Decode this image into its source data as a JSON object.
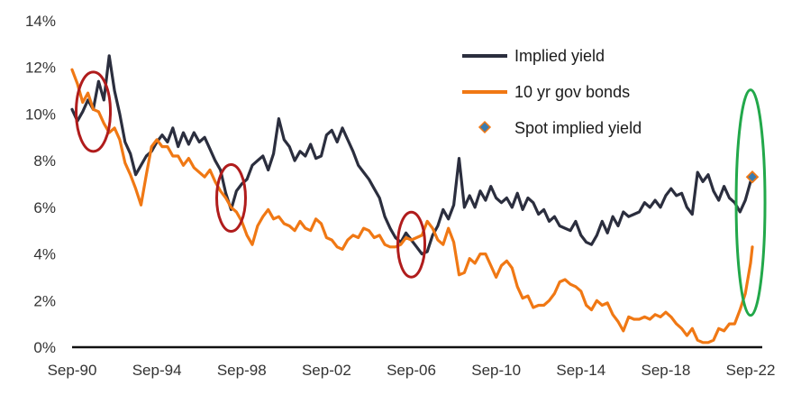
{
  "chart_data": {
    "type": "line",
    "ylim": [
      0,
      14
    ],
    "y_ticks": [
      "0%",
      "2%",
      "4%",
      "6%",
      "8%",
      "10%",
      "12%",
      "14%"
    ],
    "x_ticks": [
      "Sep-90",
      "Sep-94",
      "Sep-98",
      "Sep-02",
      "Sep-06",
      "Sep-10",
      "Sep-14",
      "Sep-18",
      "Sep-22"
    ],
    "xlim": [
      "1990-09",
      "2022-10"
    ],
    "grid": false,
    "legend_position": "top-right",
    "series": [
      {
        "name": "Implied yield",
        "color": "#2b2e3e",
        "points": [
          [
            "1990-09",
            10.2
          ],
          [
            "1990-12",
            9.7
          ],
          [
            "1991-03",
            10.1
          ],
          [
            "1991-06",
            10.6
          ],
          [
            "1991-09",
            10.2
          ],
          [
            "1991-12",
            11.4
          ],
          [
            "1992-03",
            10.6
          ],
          [
            "1992-06",
            12.5
          ],
          [
            "1992-09",
            11.0
          ],
          [
            "1992-12",
            10.0
          ],
          [
            "1993-03",
            8.8
          ],
          [
            "1993-06",
            8.3
          ],
          [
            "1993-09",
            7.4
          ],
          [
            "1993-12",
            7.8
          ],
          [
            "1994-03",
            8.2
          ],
          [
            "1994-06",
            8.4
          ],
          [
            "1994-09",
            8.8
          ],
          [
            "1994-12",
            9.1
          ],
          [
            "1995-03",
            8.8
          ],
          [
            "1995-06",
            9.4
          ],
          [
            "1995-09",
            8.6
          ],
          [
            "1995-12",
            9.2
          ],
          [
            "1996-03",
            8.7
          ],
          [
            "1996-06",
            9.2
          ],
          [
            "1996-09",
            8.8
          ],
          [
            "1996-12",
            9.0
          ],
          [
            "1997-03",
            8.5
          ],
          [
            "1997-06",
            8.0
          ],
          [
            "1997-09",
            7.6
          ],
          [
            "1997-12",
            6.6
          ],
          [
            "1998-03",
            5.9
          ],
          [
            "1998-06",
            6.7
          ],
          [
            "1998-09",
            7.0
          ],
          [
            "1998-12",
            7.2
          ],
          [
            "1999-03",
            7.8
          ],
          [
            "1999-06",
            8.0
          ],
          [
            "1999-09",
            8.2
          ],
          [
            "1999-12",
            7.6
          ],
          [
            "2000-03",
            8.3
          ],
          [
            "2000-06",
            9.8
          ],
          [
            "2000-09",
            8.9
          ],
          [
            "2000-12",
            8.6
          ],
          [
            "2001-03",
            8.0
          ],
          [
            "2001-06",
            8.4
          ],
          [
            "2001-09",
            8.2
          ],
          [
            "2001-12",
            8.7
          ],
          [
            "2002-03",
            8.1
          ],
          [
            "2002-06",
            8.2
          ],
          [
            "2002-09",
            9.1
          ],
          [
            "2002-12",
            9.3
          ],
          [
            "2003-03",
            8.8
          ],
          [
            "2003-06",
            9.4
          ],
          [
            "2003-09",
            8.9
          ],
          [
            "2003-12",
            8.4
          ],
          [
            "2004-03",
            7.8
          ],
          [
            "2004-06",
            7.5
          ],
          [
            "2004-09",
            7.2
          ],
          [
            "2004-12",
            6.8
          ],
          [
            "2005-03",
            6.4
          ],
          [
            "2005-06",
            5.6
          ],
          [
            "2005-09",
            5.1
          ],
          [
            "2005-12",
            4.7
          ],
          [
            "2006-03",
            4.5
          ],
          [
            "2006-06",
            4.9
          ],
          [
            "2006-09",
            4.6
          ],
          [
            "2006-12",
            4.3
          ],
          [
            "2007-03",
            4.0
          ],
          [
            "2007-06",
            4.1
          ],
          [
            "2007-09",
            4.8
          ],
          [
            "2007-12",
            5.2
          ],
          [
            "2008-03",
            5.9
          ],
          [
            "2008-06",
            5.5
          ],
          [
            "2008-09",
            6.1
          ],
          [
            "2008-12",
            8.1
          ],
          [
            "2009-03",
            6.0
          ],
          [
            "2009-06",
            6.5
          ],
          [
            "2009-09",
            6.0
          ],
          [
            "2009-12",
            6.7
          ],
          [
            "2010-03",
            6.3
          ],
          [
            "2010-06",
            6.9
          ],
          [
            "2010-09",
            6.4
          ],
          [
            "2010-12",
            6.2
          ],
          [
            "2011-03",
            6.4
          ],
          [
            "2011-06",
            6.0
          ],
          [
            "2011-09",
            6.6
          ],
          [
            "2011-12",
            5.9
          ],
          [
            "2012-03",
            6.4
          ],
          [
            "2012-06",
            6.2
          ],
          [
            "2012-09",
            5.7
          ],
          [
            "2012-12",
            5.9
          ],
          [
            "2013-03",
            5.4
          ],
          [
            "2013-06",
            5.6
          ],
          [
            "2013-09",
            5.2
          ],
          [
            "2013-12",
            5.1
          ],
          [
            "2014-03",
            5.0
          ],
          [
            "2014-06",
            5.4
          ],
          [
            "2014-09",
            4.8
          ],
          [
            "2014-12",
            4.5
          ],
          [
            "2015-03",
            4.4
          ],
          [
            "2015-06",
            4.8
          ],
          [
            "2015-09",
            5.4
          ],
          [
            "2015-12",
            4.9
          ],
          [
            "2016-03",
            5.6
          ],
          [
            "2016-06",
            5.2
          ],
          [
            "2016-09",
            5.8
          ],
          [
            "2016-12",
            5.6
          ],
          [
            "2017-03",
            5.7
          ],
          [
            "2017-06",
            5.8
          ],
          [
            "2017-09",
            6.2
          ],
          [
            "2017-12",
            6.0
          ],
          [
            "2018-03",
            6.3
          ],
          [
            "2018-06",
            6.0
          ],
          [
            "2018-09",
            6.5
          ],
          [
            "2018-12",
            6.8
          ],
          [
            "2019-03",
            6.5
          ],
          [
            "2019-06",
            6.6
          ],
          [
            "2019-09",
            6.0
          ],
          [
            "2019-12",
            5.7
          ],
          [
            "2020-03",
            7.5
          ],
          [
            "2020-06",
            7.1
          ],
          [
            "2020-09",
            7.4
          ],
          [
            "2020-12",
            6.7
          ],
          [
            "2021-03",
            6.3
          ],
          [
            "2021-06",
            6.9
          ],
          [
            "2021-09",
            6.4
          ],
          [
            "2021-12",
            6.2
          ],
          [
            "2022-03",
            5.8
          ],
          [
            "2022-06",
            6.3
          ],
          [
            "2022-09",
            7.1
          ],
          [
            "2022-10",
            7.3
          ]
        ]
      },
      {
        "name": "10 yr gov bonds",
        "color": "#f07814",
        "points": [
          [
            "1990-09",
            11.9
          ],
          [
            "1990-12",
            11.3
          ],
          [
            "1991-03",
            10.5
          ],
          [
            "1991-06",
            10.9
          ],
          [
            "1991-09",
            10.2
          ],
          [
            "1991-12",
            10.1
          ],
          [
            "1992-03",
            9.6
          ],
          [
            "1992-06",
            9.2
          ],
          [
            "1992-09",
            9.4
          ],
          [
            "1992-12",
            8.9
          ],
          [
            "1993-03",
            7.9
          ],
          [
            "1993-06",
            7.4
          ],
          [
            "1993-09",
            6.8
          ],
          [
            "1993-12",
            6.1
          ],
          [
            "1994-03",
            7.4
          ],
          [
            "1994-06",
            8.6
          ],
          [
            "1994-09",
            8.9
          ],
          [
            "1994-12",
            8.6
          ],
          [
            "1995-03",
            8.6
          ],
          [
            "1995-06",
            8.2
          ],
          [
            "1995-09",
            8.2
          ],
          [
            "1995-12",
            7.8
          ],
          [
            "1996-03",
            8.1
          ],
          [
            "1996-06",
            7.7
          ],
          [
            "1996-09",
            7.5
          ],
          [
            "1996-12",
            7.3
          ],
          [
            "1997-03",
            7.6
          ],
          [
            "1997-06",
            7.1
          ],
          [
            "1997-09",
            6.7
          ],
          [
            "1997-12",
            6.4
          ],
          [
            "1998-03",
            6.0
          ],
          [
            "1998-06",
            5.8
          ],
          [
            "1998-09",
            5.4
          ],
          [
            "1998-12",
            4.8
          ],
          [
            "1999-03",
            4.4
          ],
          [
            "1999-06",
            5.2
          ],
          [
            "1999-09",
            5.6
          ],
          [
            "1999-12",
            5.9
          ],
          [
            "2000-03",
            5.5
          ],
          [
            "2000-06",
            5.6
          ],
          [
            "2000-09",
            5.3
          ],
          [
            "2000-12",
            5.2
          ],
          [
            "2001-03",
            5.0
          ],
          [
            "2001-06",
            5.4
          ],
          [
            "2001-09",
            5.1
          ],
          [
            "2001-12",
            5.0
          ],
          [
            "2002-03",
            5.5
          ],
          [
            "2002-06",
            5.3
          ],
          [
            "2002-09",
            4.7
          ],
          [
            "2002-12",
            4.6
          ],
          [
            "2003-03",
            4.3
          ],
          [
            "2003-06",
            4.2
          ],
          [
            "2003-09",
            4.6
          ],
          [
            "2003-12",
            4.8
          ],
          [
            "2004-03",
            4.7
          ],
          [
            "2004-06",
            5.1
          ],
          [
            "2004-09",
            5.0
          ],
          [
            "2004-12",
            4.7
          ],
          [
            "2005-03",
            4.8
          ],
          [
            "2005-06",
            4.4
          ],
          [
            "2005-09",
            4.3
          ],
          [
            "2005-12",
            4.3
          ],
          [
            "2006-03",
            4.4
          ],
          [
            "2006-06",
            4.7
          ],
          [
            "2006-09",
            4.6
          ],
          [
            "2006-12",
            4.7
          ],
          [
            "2007-03",
            4.8
          ],
          [
            "2007-06",
            5.4
          ],
          [
            "2007-09",
            5.1
          ],
          [
            "2007-12",
            4.6
          ],
          [
            "2008-03",
            4.4
          ],
          [
            "2008-06",
            5.1
          ],
          [
            "2008-09",
            4.5
          ],
          [
            "2008-12",
            3.1
          ],
          [
            "2009-03",
            3.2
          ],
          [
            "2009-06",
            3.8
          ],
          [
            "2009-09",
            3.6
          ],
          [
            "2009-12",
            4.0
          ],
          [
            "2010-03",
            4.0
          ],
          [
            "2010-06",
            3.5
          ],
          [
            "2010-09",
            3.0
          ],
          [
            "2010-12",
            3.5
          ],
          [
            "2011-03",
            3.7
          ],
          [
            "2011-06",
            3.4
          ],
          [
            "2011-09",
            2.6
          ],
          [
            "2011-12",
            2.1
          ],
          [
            "2012-03",
            2.2
          ],
          [
            "2012-06",
            1.7
          ],
          [
            "2012-09",
            1.8
          ],
          [
            "2012-12",
            1.8
          ],
          [
            "2013-03",
            2.0
          ],
          [
            "2013-06",
            2.3
          ],
          [
            "2013-09",
            2.8
          ],
          [
            "2013-12",
            2.9
          ],
          [
            "2014-03",
            2.7
          ],
          [
            "2014-06",
            2.6
          ],
          [
            "2014-09",
            2.4
          ],
          [
            "2014-12",
            1.8
          ],
          [
            "2015-03",
            1.6
          ],
          [
            "2015-06",
            2.0
          ],
          [
            "2015-09",
            1.8
          ],
          [
            "2015-12",
            1.9
          ],
          [
            "2016-03",
            1.4
          ],
          [
            "2016-06",
            1.1
          ],
          [
            "2016-09",
            0.7
          ],
          [
            "2016-12",
            1.3
          ],
          [
            "2017-03",
            1.2
          ],
          [
            "2017-06",
            1.2
          ],
          [
            "2017-09",
            1.3
          ],
          [
            "2017-12",
            1.2
          ],
          [
            "2018-03",
            1.4
          ],
          [
            "2018-06",
            1.3
          ],
          [
            "2018-09",
            1.5
          ],
          [
            "2018-12",
            1.3
          ],
          [
            "2019-03",
            1.0
          ],
          [
            "2019-06",
            0.8
          ],
          [
            "2019-09",
            0.5
          ],
          [
            "2019-12",
            0.8
          ],
          [
            "2020-03",
            0.3
          ],
          [
            "2020-06",
            0.2
          ],
          [
            "2020-09",
            0.2
          ],
          [
            "2020-12",
            0.3
          ],
          [
            "2021-03",
            0.8
          ],
          [
            "2021-06",
            0.7
          ],
          [
            "2021-09",
            1.0
          ],
          [
            "2021-12",
            1.0
          ],
          [
            "2022-03",
            1.6
          ],
          [
            "2022-06",
            2.3
          ],
          [
            "2022-09",
            3.6
          ],
          [
            "2022-10",
            4.3
          ]
        ]
      },
      {
        "name": "Spot implied yield",
        "type": "scatter",
        "marker": "diamond",
        "color": "#3a7bb0",
        "outline": "#f07814",
        "points": [
          [
            "2022-10",
            7.3
          ]
        ]
      }
    ],
    "annotations": [
      {
        "shape": "ellipse",
        "color": "#b01c1c",
        "x": "1991-09",
        "y": 10.1
      },
      {
        "shape": "ellipse",
        "color": "#b01c1c",
        "x": "1998-03",
        "y": 6.4
      },
      {
        "shape": "ellipse",
        "color": "#b01c1c",
        "x": "2006-09",
        "y": 4.4
      },
      {
        "shape": "ellipse",
        "color": "#22a84a",
        "x": "2022-09",
        "y": 6.2
      }
    ]
  }
}
